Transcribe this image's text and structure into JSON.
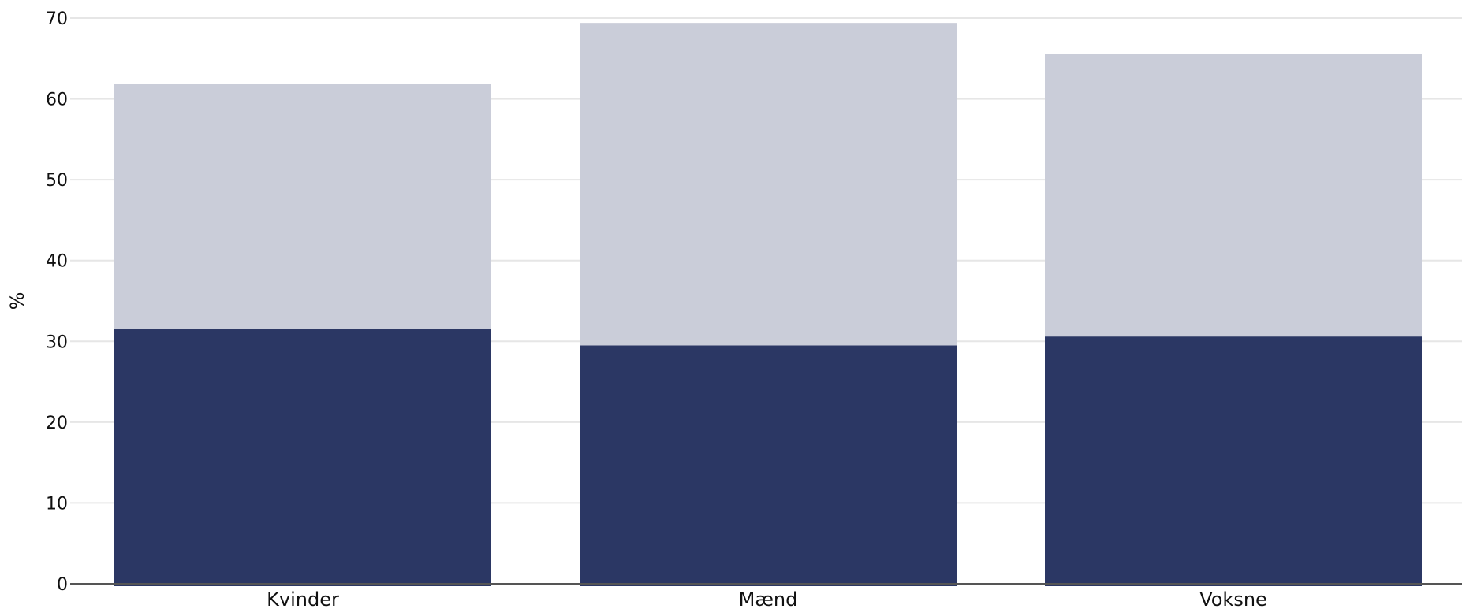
{
  "chart_data": {
    "type": "bar",
    "stacked": true,
    "title": "",
    "xlabel": "",
    "ylabel": "%",
    "ylim": [
      0,
      70
    ],
    "yticks": [
      0,
      10,
      20,
      30,
      40,
      50,
      60,
      70
    ],
    "grid": true,
    "legend": "none",
    "categories": [
      "Kvinder",
      "Mænd",
      "Voksne"
    ],
    "series": [
      {
        "values": [
          31.6,
          29.5,
          30.6
        ],
        "color": "#2b3764"
      },
      {
        "values": [
          30.3,
          39.9,
          35.0
        ],
        "color": "#cacdd9"
      }
    ]
  }
}
